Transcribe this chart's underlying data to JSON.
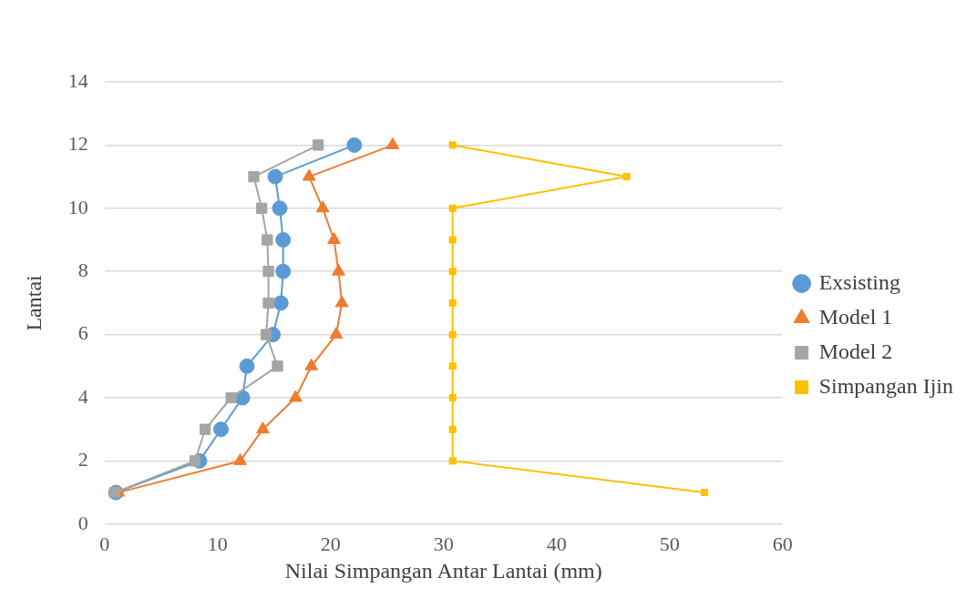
{
  "chart_data": {
    "type": "line",
    "xlabel": "Nilai Simpangan Antar Lantai (mm)",
    "ylabel": "Lantai",
    "xlim": [
      0,
      60
    ],
    "xticks": [
      0,
      10,
      20,
      30,
      40,
      50,
      60
    ],
    "ylim": [
      0,
      14
    ],
    "yticks": [
      0,
      2,
      4,
      6,
      8,
      10,
      12,
      14
    ],
    "grid": "y",
    "legend": "right",
    "series": [
      {
        "name": "Exsisting",
        "color": "#5b9bd5",
        "marker": "circle",
        "x": [
          1.0,
          8.4,
          10.3,
          12.2,
          12.6,
          14.9,
          15.6,
          15.8,
          15.8,
          15.5,
          15.1,
          22.1
        ],
        "values": [
          1,
          2,
          3,
          4,
          5,
          6,
          7,
          8,
          9,
          10,
          11,
          12
        ]
      },
      {
        "name": "Model 1",
        "color": "#ed7d31",
        "marker": "triangle",
        "x": [
          1.2,
          12.0,
          14.0,
          16.9,
          18.3,
          20.5,
          21.0,
          20.7,
          20.3,
          19.3,
          18.1,
          25.5
        ],
        "values": [
          1,
          2,
          3,
          4,
          5,
          6,
          7,
          8,
          9,
          10,
          11,
          12
        ]
      },
      {
        "name": "Model 2",
        "color": "#a5a5a5",
        "marker": "square",
        "x": [
          0.9,
          8.0,
          8.9,
          11.2,
          15.3,
          14.3,
          14.5,
          14.5,
          14.4,
          13.9,
          13.2,
          18.9
        ],
        "values": [
          1,
          2,
          3,
          4,
          5,
          6,
          7,
          8,
          9,
          10,
          11,
          12
        ]
      },
      {
        "name": "Simpangan Ijin",
        "color": "#ffc000",
        "marker": "square",
        "x": [
          53.1,
          30.8,
          30.8,
          30.8,
          30.8,
          30.8,
          30.8,
          30.8,
          30.8,
          30.8,
          46.2,
          30.8
        ],
        "values": [
          1,
          2,
          3,
          4,
          5,
          6,
          7,
          8,
          9,
          10,
          11,
          12
        ]
      }
    ]
  }
}
